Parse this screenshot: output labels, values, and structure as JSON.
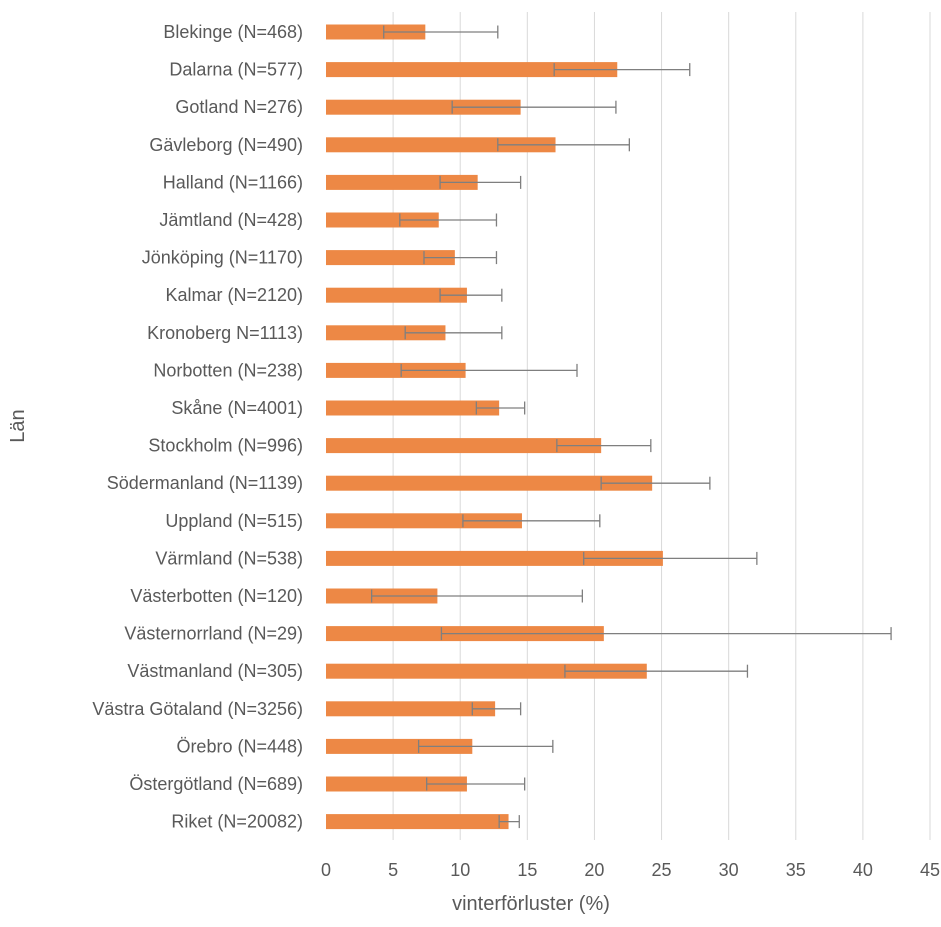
{
  "chart_data": {
    "type": "bar",
    "orientation": "horizontal",
    "title": "",
    "xlabel": "vinterförluster (%)",
    "ylabel": "Län",
    "xlim": [
      0,
      45
    ],
    "xticks": [
      0,
      5,
      10,
      15,
      20,
      25,
      30,
      35,
      40,
      45
    ],
    "grid": "vertical",
    "legend": "none",
    "bar_color": "#ED8845",
    "errorbar_color": "#7F7F7F",
    "grid_color": "#D9D9D9",
    "categories": [
      "Blekinge (N=468)",
      "Dalarna (N=577)",
      "Gotland N=276)",
      "Gävleborg (N=490)",
      "Halland (N=1166)",
      "Jämtland (N=428)",
      "Jönköping (N=1170)",
      "Kalmar (N=2120)",
      "Kronoberg N=1113)",
      "Norbotten (N=238)",
      "Skåne (N=4001)",
      "Stockholm (N=996)",
      "Södermanland (N=1139)",
      "Uppland (N=515)",
      "Värmland (N=538)",
      "Västerbotten (N=120)",
      "Västernorrland (N=29)",
      "Västmanland (N=305)",
      "Västra Götaland (N=3256)",
      "Örebro (N=448)",
      "Östergötland (N=689)",
      "Riket (N=20082)"
    ],
    "values": [
      7.4,
      21.7,
      14.5,
      17.1,
      11.3,
      8.4,
      9.6,
      10.5,
      8.9,
      10.4,
      12.9,
      20.5,
      24.3,
      14.6,
      25.1,
      8.3,
      20.7,
      23.9,
      12.6,
      10.9,
      10.5,
      13.6
    ],
    "err_low": [
      4.3,
      17.0,
      9.4,
      12.8,
      8.5,
      5.5,
      7.3,
      8.5,
      5.9,
      5.6,
      11.2,
      17.2,
      20.5,
      10.2,
      19.2,
      3.4,
      8.6,
      17.8,
      10.9,
      6.9,
      7.5,
      12.9
    ],
    "err_high": [
      12.8,
      27.1,
      21.6,
      22.6,
      14.5,
      12.7,
      12.7,
      13.1,
      13.1,
      18.7,
      14.8,
      24.2,
      28.6,
      20.4,
      32.1,
      19.1,
      42.1,
      31.4,
      14.5,
      16.9,
      14.8,
      14.4
    ]
  }
}
